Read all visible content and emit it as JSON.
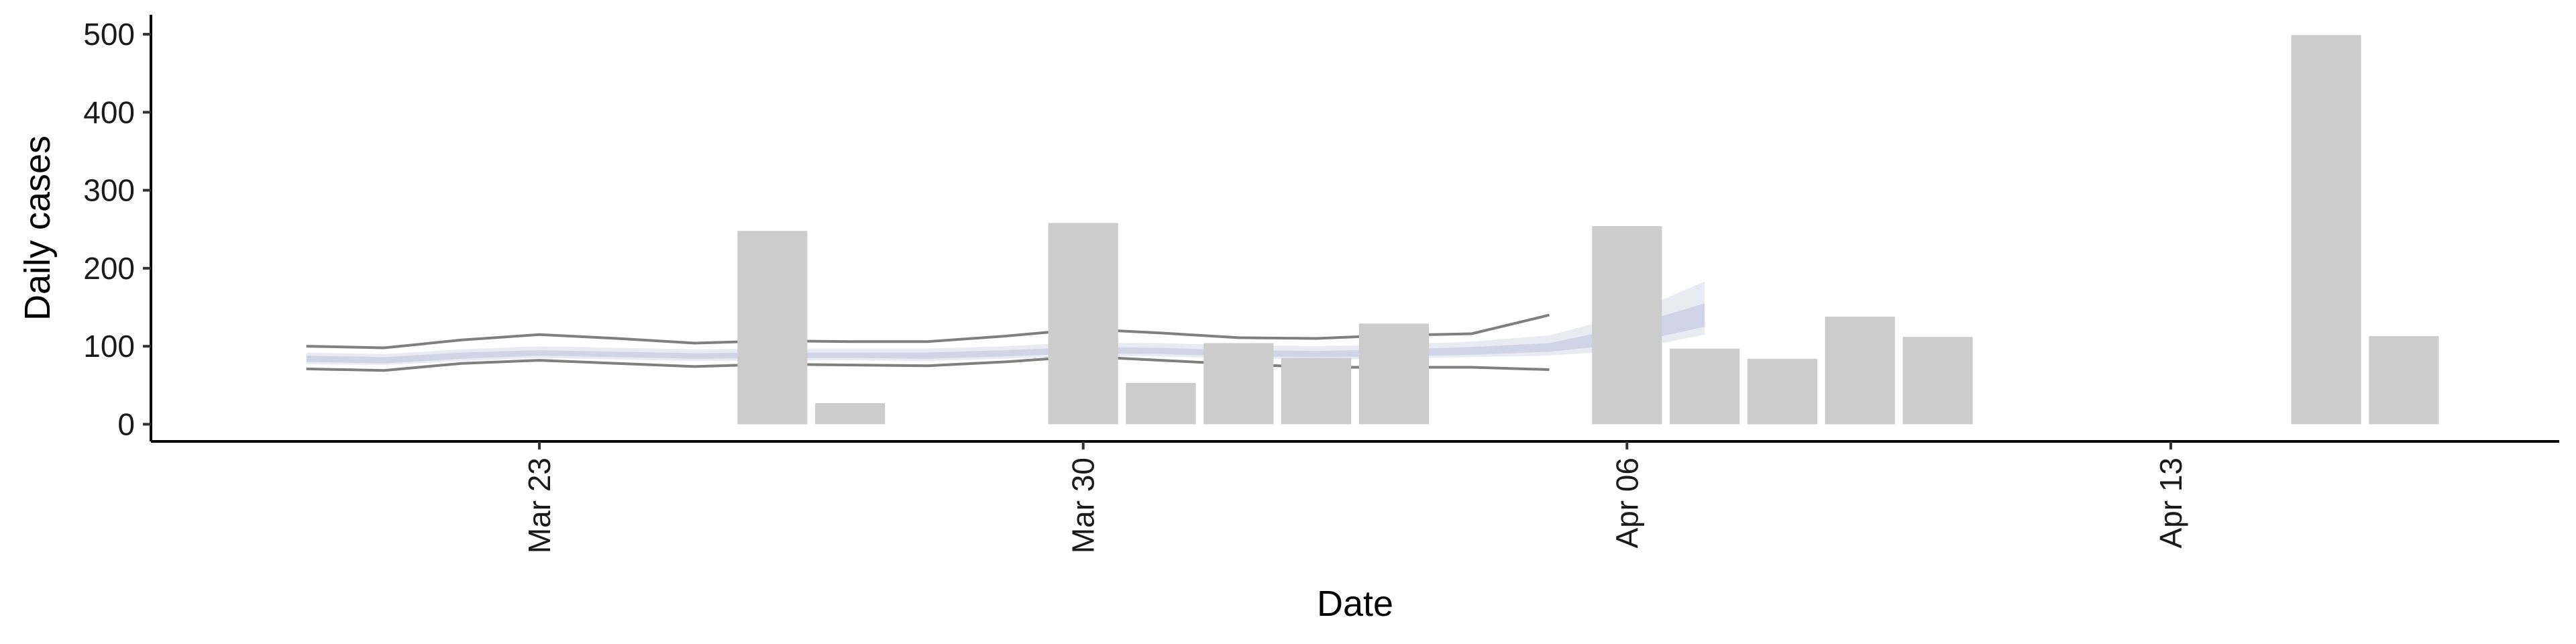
{
  "chart_data": {
    "type": "bar",
    "xlabel": "Date",
    "ylabel": "Daily cases",
    "ylim": [
      -22,
      525
    ],
    "xlim": [
      "2020-03-18",
      "2020-04-18"
    ],
    "x_ticks": [
      {
        "date": "2020-03-23",
        "label": "Mar 23"
      },
      {
        "date": "2020-03-30",
        "label": "Mar 30"
      },
      {
        "date": "2020-04-06",
        "label": "Apr 06"
      },
      {
        "date": "2020-04-13",
        "label": "Apr 13"
      }
    ],
    "y_ticks": [
      0,
      100,
      200,
      300,
      400,
      500
    ],
    "grid": false,
    "legend": "none",
    "colors": {
      "bars": "#cccccc",
      "interval_lines": "#7f7f7f",
      "ribbon_outer": "#e9ebf3",
      "ribbon_inner": "#cfd5e6",
      "axis": "#000000"
    },
    "bars": [
      {
        "date": "2020-03-26",
        "value": 248
      },
      {
        "date": "2020-03-27",
        "value": 27
      },
      {
        "date": "2020-03-30",
        "value": 258
      },
      {
        "date": "2020-03-31",
        "value": 53
      },
      {
        "date": "2020-04-01",
        "value": 104
      },
      {
        "date": "2020-04-02",
        "value": 85
      },
      {
        "date": "2020-04-03",
        "value": 129
      },
      {
        "date": "2020-04-06",
        "value": 254
      },
      {
        "date": "2020-04-07",
        "value": 97
      },
      {
        "date": "2020-04-08",
        "value": 84
      },
      {
        "date": "2020-04-09",
        "value": 138
      },
      {
        "date": "2020-04-10",
        "value": 112
      },
      {
        "date": "2020-04-15",
        "value": 499
      },
      {
        "date": "2020-04-16",
        "value": 113
      }
    ],
    "interval_lines": {
      "dates": [
        "2020-03-20",
        "2020-03-21",
        "2020-03-22",
        "2020-03-23",
        "2020-03-24",
        "2020-03-25",
        "2020-03-26",
        "2020-03-27",
        "2020-03-28",
        "2020-03-29",
        "2020-03-30",
        "2020-03-31",
        "2020-04-01",
        "2020-04-02",
        "2020-04-03",
        "2020-04-04",
        "2020-04-05"
      ],
      "upper": [
        100,
        98,
        108,
        115,
        110,
        104,
        107,
        106,
        106,
        113,
        122,
        117,
        111,
        110,
        114,
        116,
        140
      ],
      "lower": [
        71,
        69,
        78,
        82,
        78,
        74,
        77,
        76,
        75,
        80,
        87,
        82,
        77,
        73,
        73,
        73,
        70
      ]
    },
    "ribbon": {
      "dates": [
        "2020-03-20",
        "2020-03-21",
        "2020-03-22",
        "2020-03-23",
        "2020-03-24",
        "2020-03-25",
        "2020-03-26",
        "2020-03-27",
        "2020-03-28",
        "2020-03-29",
        "2020-03-30",
        "2020-03-31",
        "2020-04-01",
        "2020-04-02",
        "2020-04-03",
        "2020-04-04",
        "2020-04-05",
        "2020-04-06",
        "2020-04-07"
      ],
      "outer_upper": [
        92,
        90,
        96,
        100,
        98,
        96,
        97,
        97,
        97,
        100,
        105,
        104,
        101,
        100,
        102,
        106,
        114,
        140,
        183
      ],
      "outer_lower": [
        77,
        76,
        81,
        85,
        83,
        81,
        82,
        82,
        81,
        84,
        88,
        87,
        84,
        83,
        84,
        86,
        88,
        95,
        115
      ],
      "inner_upper": [
        88,
        86,
        92,
        95,
        93,
        91,
        92,
        92,
        92,
        95,
        99,
        98,
        95,
        94,
        96,
        99,
        104,
        125,
        155
      ],
      "inner_lower": [
        80,
        78,
        84,
        88,
        86,
        84,
        85,
        85,
        84,
        87,
        91,
        90,
        87,
        86,
        87,
        89,
        93,
        103,
        125
      ]
    }
  }
}
